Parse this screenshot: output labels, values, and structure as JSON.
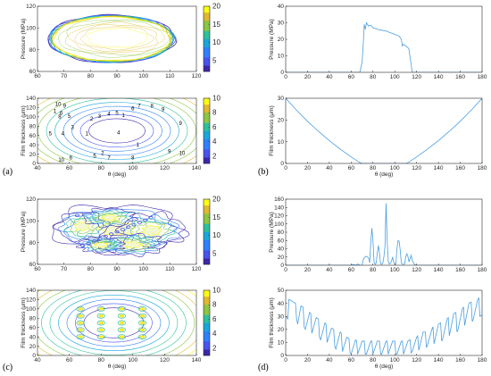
{
  "palette": {
    "parula": [
      "#3e26a8",
      "#4753f0",
      "#2f80fa",
      "#18a7da",
      "#2ec09b",
      "#8cc643",
      "#e0b92f",
      "#f9fb15"
    ],
    "line_blue": "#4a9ee0",
    "axis": "#262626"
  },
  "panel_labels": [
    "(a)",
    "(b)",
    "(c)",
    "(d)"
  ],
  "chart_data": [
    {
      "id": "a-top",
      "type": "contour",
      "xlabel": "",
      "ylabel": "Pressure (MPa)",
      "xlim": [
        60,
        120
      ],
      "ylim": [
        60,
        120
      ],
      "xticks": [
        60,
        70,
        80,
        90,
        100,
        110,
        120
      ],
      "yticks": [
        60,
        80,
        100,
        120
      ],
      "colorbar": {
        "ticks": [
          5,
          10,
          15,
          20
        ],
        "range": [
          2,
          20
        ]
      },
      "shape": {
        "center": [
          88,
          90
        ],
        "radius": [
          24,
          22
        ]
      }
    },
    {
      "id": "a-bottom",
      "type": "contour",
      "xlabel": "θ (deg)",
      "ylabel": "Film thickness (μm)",
      "xlim": [
        40,
        140
      ],
      "ylim": [
        0,
        140
      ],
      "xticks": [
        40,
        60,
        80,
        100,
        120,
        140
      ],
      "yticks": [
        0,
        20,
        40,
        60,
        80,
        100,
        120,
        140
      ],
      "colorbar": {
        "ticks": [
          2,
          4,
          6,
          8,
          10
        ],
        "range": [
          1,
          10
        ]
      },
      "contour_labels": [
        "1",
        "2",
        "3",
        "4",
        "5",
        "6",
        "7",
        "8",
        "9",
        "10"
      ],
      "labeled_points": [
        {
          "text": "10",
          "x": 53,
          "y": 128
        },
        {
          "text": "9",
          "x": 57,
          "y": 124
        },
        {
          "text": "1",
          "x": 51,
          "y": 112
        },
        {
          "text": "6",
          "x": 55,
          "y": 108
        },
        {
          "text": "8",
          "x": 54,
          "y": 101
        },
        {
          "text": "5",
          "x": 60,
          "y": 102
        },
        {
          "text": "3",
          "x": 62,
          "y": 78
        },
        {
          "text": "4",
          "x": 56,
          "y": 64
        },
        {
          "text": "5",
          "x": 48,
          "y": 64
        },
        {
          "text": "2",
          "x": 74,
          "y": 96
        },
        {
          "text": "3",
          "x": 79,
          "y": 102
        },
        {
          "text": "4",
          "x": 85,
          "y": 106
        },
        {
          "text": "5",
          "x": 90,
          "y": 108
        },
        {
          "text": "1",
          "x": 94,
          "y": 104
        },
        {
          "text": "6",
          "x": 100,
          "y": 118
        },
        {
          "text": "7",
          "x": 104,
          "y": 124
        },
        {
          "text": "8",
          "x": 112,
          "y": 124
        },
        {
          "text": "9",
          "x": 119,
          "y": 116
        },
        {
          "text": "9",
          "x": 130,
          "y": 86
        },
        {
          "text": "4",
          "x": 91,
          "y": 66
        },
        {
          "text": "1",
          "x": 71,
          "y": 64
        },
        {
          "text": "1",
          "x": 103,
          "y": 40
        },
        {
          "text": "2",
          "x": 81,
          "y": 22
        },
        {
          "text": "5",
          "x": 76,
          "y": 16
        },
        {
          "text": "7",
          "x": 85,
          "y": 12
        },
        {
          "text": "8",
          "x": 100,
          "y": 12
        },
        {
          "text": "10",
          "x": 55,
          "y": 8
        },
        {
          "text": "6",
          "x": 61,
          "y": 12
        },
        {
          "text": "9",
          "x": 123,
          "y": 26
        },
        {
          "text": "10",
          "x": 131,
          "y": 22
        }
      ]
    },
    {
      "id": "b-top",
      "type": "line",
      "xlabel": "",
      "ylabel": "Pressure (MPa)",
      "xlim": [
        0,
        180
      ],
      "ylim": [
        0,
        40
      ],
      "xticks": [
        0,
        20,
        40,
        60,
        80,
        100,
        120,
        140,
        160,
        180
      ],
      "yticks": [
        0,
        10,
        20,
        30,
        40
      ],
      "x": [
        0,
        60,
        68,
        70,
        71,
        72,
        73,
        74,
        76,
        78,
        80,
        84,
        88,
        92,
        96,
        100,
        104,
        106,
        107,
        108,
        110,
        112,
        113,
        114,
        115,
        116,
        120,
        140,
        160,
        180
      ],
      "y": [
        0,
        0,
        0,
        6,
        16,
        29,
        26,
        30,
        28,
        28.5,
        27,
        26,
        25.5,
        25,
        24,
        23,
        22,
        20,
        16,
        17,
        16,
        15,
        14,
        9,
        5,
        0,
        0,
        0,
        0,
        0
      ]
    },
    {
      "id": "b-bottom",
      "type": "line",
      "xlabel": "θ (deg)",
      "ylabel": "Film thickness (μm)",
      "xlim": [
        0,
        180
      ],
      "ylim": [
        0,
        30
      ],
      "xticks": [
        0,
        20,
        40,
        60,
        80,
        100,
        120,
        140,
        160,
        180
      ],
      "yticks": [
        0,
        10,
        20,
        30
      ],
      "x": [
        0,
        10,
        20,
        30,
        40,
        50,
        60,
        68,
        70,
        80,
        90,
        100,
        110,
        112,
        120,
        130,
        140,
        150,
        160,
        170,
        180
      ],
      "y": [
        30,
        24.5,
        19.4,
        14.8,
        10.5,
        6.6,
        3.0,
        0.4,
        0,
        0,
        0,
        0,
        0,
        0.3,
        3.0,
        6.6,
        10.5,
        14.8,
        19.4,
        24.5,
        30
      ]
    },
    {
      "id": "c-top",
      "type": "contour",
      "xlabel": "",
      "ylabel": "Pressure (MPa)",
      "xlim": [
        60,
        120
      ],
      "ylim": [
        60,
        120
      ],
      "xticks": [
        60,
        70,
        80,
        90,
        100,
        110,
        120
      ],
      "yticks": [
        60,
        80,
        100,
        120
      ],
      "colorbar": {
        "ticks": [
          5,
          10,
          15,
          20
        ],
        "range": [
          2,
          20
        ]
      }
    },
    {
      "id": "c-bottom",
      "type": "contour",
      "xlabel": "θ (deg)",
      "ylabel": "Film thickness (μm)",
      "xlim": [
        40,
        140
      ],
      "ylim": [
        0,
        140
      ],
      "xticks": [
        40,
        60,
        80,
        100,
        120,
        140
      ],
      "yticks": [
        0,
        20,
        40,
        60,
        80,
        100,
        120,
        140
      ],
      "colorbar": {
        "ticks": [
          2,
          4,
          6,
          8,
          10
        ],
        "range": [
          1,
          10
        ]
      },
      "dimples": [
        {
          "x": 67,
          "y": 100
        },
        {
          "x": 80,
          "y": 100
        },
        {
          "x": 93,
          "y": 100
        },
        {
          "x": 106,
          "y": 100
        },
        {
          "x": 67,
          "y": 85
        },
        {
          "x": 80,
          "y": 85
        },
        {
          "x": 93,
          "y": 85
        },
        {
          "x": 106,
          "y": 85
        },
        {
          "x": 67,
          "y": 70
        },
        {
          "x": 80,
          "y": 70
        },
        {
          "x": 93,
          "y": 70
        },
        {
          "x": 106,
          "y": 70
        },
        {
          "x": 67,
          "y": 55
        },
        {
          "x": 80,
          "y": 55
        },
        {
          "x": 93,
          "y": 55
        },
        {
          "x": 106,
          "y": 55
        },
        {
          "x": 67,
          "y": 40
        },
        {
          "x": 80,
          "y": 40
        },
        {
          "x": 93,
          "y": 40
        },
        {
          "x": 106,
          "y": 40
        }
      ]
    },
    {
      "id": "d-top",
      "type": "line",
      "xlabel": "",
      "ylabel": "Pressure (MPa)",
      "xlim": [
        0,
        180
      ],
      "ylim": [
        0,
        160
      ],
      "xticks": [
        0,
        20,
        40,
        60,
        80,
        100,
        120,
        140,
        160,
        180
      ],
      "yticks": [
        0,
        20,
        40,
        60,
        80,
        100,
        120,
        140,
        160
      ],
      "x": [
        0,
        60,
        62,
        64,
        66,
        68,
        70,
        71,
        72,
        73,
        74,
        76,
        77,
        78,
        79,
        80,
        81,
        82,
        83,
        84,
        85,
        86,
        87,
        88,
        89,
        90,
        91,
        92,
        93,
        94,
        95,
        96,
        97,
        98,
        99,
        100,
        101,
        102,
        103,
        104,
        105,
        106,
        107,
        108,
        109,
        110,
        111,
        112,
        113,
        114,
        115,
        116,
        118,
        120,
        180
      ],
      "y": [
        0,
        0,
        2,
        0,
        3,
        0,
        0,
        12,
        18,
        20,
        22,
        18,
        6,
        55,
        90,
        60,
        8,
        2,
        6,
        30,
        48,
        28,
        4,
        2,
        5,
        20,
        45,
        150,
        60,
        10,
        3,
        5,
        10,
        20,
        8,
        2,
        3,
        40,
        60,
        58,
        36,
        5,
        3,
        2,
        3,
        20,
        28,
        22,
        8,
        16,
        24,
        12,
        2,
        0,
        0
      ]
    },
    {
      "id": "d-bottom",
      "type": "line",
      "xlabel": "θ (deg)",
      "ylabel": "Film thickness (μm)",
      "xlim": [
        0,
        180
      ],
      "ylim": [
        0,
        50
      ],
      "xticks": [
        0,
        20,
        40,
        60,
        80,
        100,
        120,
        140,
        160,
        180
      ],
      "yticks": [
        0,
        10,
        20,
        30,
        40,
        50
      ],
      "x": [
        0,
        2,
        3,
        5,
        9,
        10,
        11,
        14,
        16,
        17,
        18,
        22,
        23,
        24,
        28,
        30,
        31,
        32,
        36,
        37,
        38,
        42,
        44,
        45,
        46,
        50,
        51,
        52,
        56,
        58,
        59,
        60,
        64,
        65,
        66,
        70,
        72,
        73,
        74,
        78,
        79,
        80,
        84,
        86,
        87,
        88,
        92,
        93,
        94,
        98,
        100,
        101,
        102,
        106,
        107,
        108,
        112,
        114,
        115,
        116,
        120,
        121,
        122,
        126,
        128,
        129,
        130,
        134,
        135,
        136,
        140,
        142,
        143,
        144,
        148,
        149,
        150,
        154,
        156,
        157,
        158,
        162,
        163,
        164,
        168,
        170,
        171,
        172,
        176,
        177,
        178,
        180
      ],
      "y": [
        30,
        28,
        43,
        42,
        40,
        28,
        24,
        38,
        37,
        22,
        20,
        33,
        32,
        17,
        29,
        28,
        14,
        12,
        25,
        24,
        10,
        21,
        20,
        7,
        5,
        18,
        17,
        3,
        14,
        13,
        2,
        1,
        12,
        11,
        1,
        11,
        11,
        1,
        1,
        11,
        11,
        1,
        11,
        11,
        1,
        1,
        11,
        11,
        1,
        11,
        11,
        1,
        1,
        11,
        11,
        1,
        11,
        12,
        2,
        3,
        14,
        15,
        4,
        18,
        18,
        6,
        8,
        20,
        22,
        9,
        24,
        25,
        11,
        13,
        28,
        29,
        15,
        32,
        33,
        18,
        20,
        36,
        37,
        23,
        40,
        41,
        26,
        28,
        43,
        44,
        30,
        31
      ]
    }
  ]
}
